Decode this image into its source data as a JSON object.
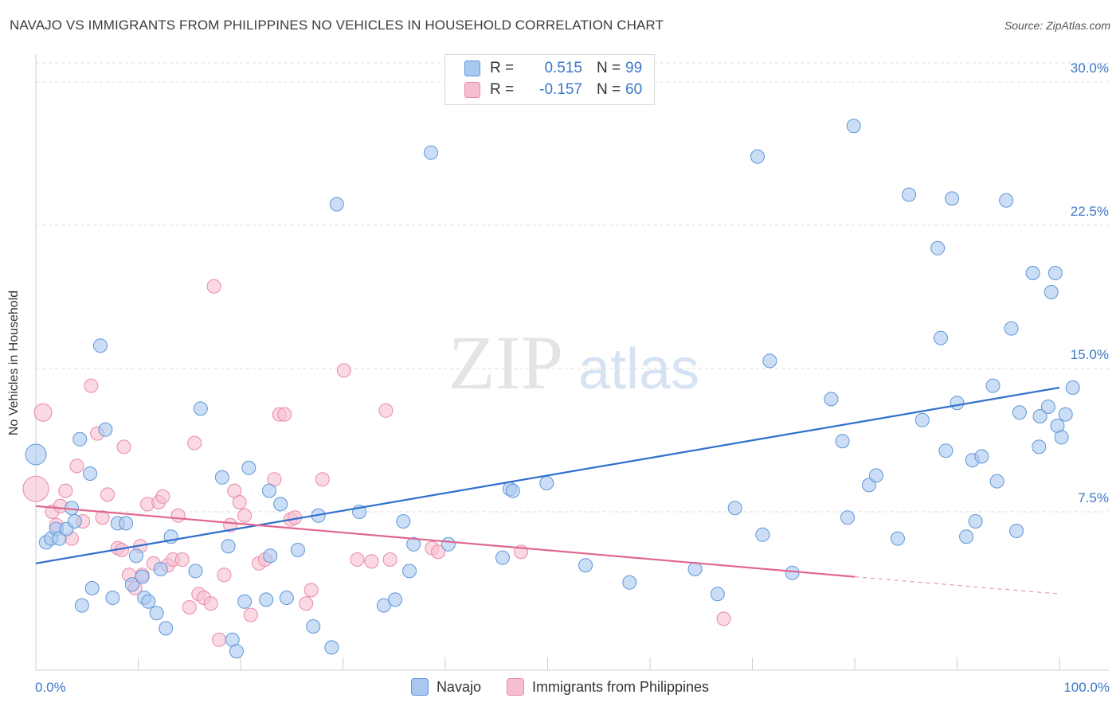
{
  "title": "NAVAJO VS IMMIGRANTS FROM PHILIPPINES NO VEHICLES IN HOUSEHOLD CORRELATION CHART",
  "source": "Source: ZipAtlas.com",
  "watermark": {
    "zip": "ZIP",
    "atlas": "atlas"
  },
  "legend_top": {
    "rows": [
      {
        "r_label": "R =",
        "r_value": "0.515",
        "n_label": "N =",
        "n_value": "99"
      },
      {
        "r_label": "R =",
        "r_value": "-0.157",
        "n_label": "N =",
        "n_value": "60"
      }
    ]
  },
  "legend_bottom": {
    "series1": "Navajo",
    "series2": "Immigrants from Philippines"
  },
  "colors": {
    "navajo_fill": "#a9c8ef",
    "navajo_stroke": "#5f96d8",
    "navajo_line": "#2f6fce",
    "phil_fill": "#f6bfd0",
    "phil_stroke": "#e88aa8",
    "phil_line": "#e0668e",
    "value_text": "#3b78c9",
    "grid": "#dcdcdc"
  },
  "chart_data": {
    "type": "scatter",
    "title": "NAVAJO VS IMMIGRANTS FROM PHILIPPINES NO VEHICLES IN HOUSEHOLD CORRELATION CHART",
    "xlabel": "",
    "ylabel": "No Vehicles in Household",
    "xlim": [
      0,
      100
    ],
    "ylim": [
      0,
      31
    ],
    "x_tick_labels": [
      "0.0%",
      "100.0%"
    ],
    "y_ticks": [
      7.5,
      15.0,
      22.5,
      30.0
    ],
    "y_tick_labels": [
      "7.5%",
      "15.0%",
      "22.5%",
      "30.0%"
    ],
    "grid": "horizontal dashed",
    "legend_position": "top-center",
    "series": [
      {
        "name": "Navajo",
        "r": 0.515,
        "n": 99,
        "trend": {
          "x": [
            0,
            100
          ],
          "y": [
            4.8,
            14.0
          ]
        },
        "points": [
          [
            0,
            10.5
          ],
          [
            1,
            5.9
          ],
          [
            1.5,
            6.1
          ],
          [
            2,
            6.6
          ],
          [
            2.3,
            6.1
          ],
          [
            3,
            6.6
          ],
          [
            3.5,
            7.7
          ],
          [
            3.8,
            7.0
          ],
          [
            4.5,
            2.6
          ],
          [
            4.3,
            11.3
          ],
          [
            5.3,
            9.5
          ],
          [
            5.5,
            3.5
          ],
          [
            6.3,
            16.2
          ],
          [
            6.8,
            11.8
          ],
          [
            7.5,
            3.0
          ],
          [
            8,
            6.9
          ],
          [
            8.8,
            6.9
          ],
          [
            9.4,
            3.7
          ],
          [
            9.8,
            5.2
          ],
          [
            10.4,
            4.1
          ],
          [
            10.6,
            3.0
          ],
          [
            11,
            2.8
          ],
          [
            11.8,
            2.2
          ],
          [
            12.2,
            4.5
          ],
          [
            12.7,
            1.4
          ],
          [
            13.2,
            6.2
          ],
          [
            15.6,
            4.4
          ],
          [
            16.1,
            12.9
          ],
          [
            18.2,
            9.3
          ],
          [
            18.8,
            5.7
          ],
          [
            19.2,
            0.8
          ],
          [
            19.6,
            0.2
          ],
          [
            20.4,
            2.8
          ],
          [
            20.8,
            9.8
          ],
          [
            22.5,
            2.9
          ],
          [
            22.8,
            8.6
          ],
          [
            22.9,
            5.2
          ],
          [
            23.9,
            7.9
          ],
          [
            24.5,
            3.0
          ],
          [
            25.6,
            5.5
          ],
          [
            27.1,
            1.5
          ],
          [
            27.6,
            7.3
          ],
          [
            28.9,
            0.4
          ],
          [
            29.4,
            23.6
          ],
          [
            31.6,
            7.5
          ],
          [
            34.0,
            2.6
          ],
          [
            35.1,
            2.9
          ],
          [
            35.9,
            7.0
          ],
          [
            36.5,
            4.4
          ],
          [
            36.9,
            5.8
          ],
          [
            38.6,
            26.3
          ],
          [
            40.3,
            5.8
          ],
          [
            45.6,
            5.1
          ],
          [
            46.3,
            8.7
          ],
          [
            46.6,
            8.6
          ],
          [
            49.9,
            9.0
          ],
          [
            53.7,
            4.7
          ],
          [
            58.0,
            3.8
          ],
          [
            64.4,
            4.5
          ],
          [
            66.6,
            3.2
          ],
          [
            68.3,
            7.7
          ],
          [
            70.5,
            26.1
          ],
          [
            71.0,
            6.3
          ],
          [
            71.7,
            15.4
          ],
          [
            73.9,
            4.3
          ],
          [
            77.7,
            13.4
          ],
          [
            78.8,
            11.2
          ],
          [
            79.3,
            7.2
          ],
          [
            79.9,
            27.7
          ],
          [
            81.4,
            8.9
          ],
          [
            82.1,
            9.4
          ],
          [
            84.2,
            6.1
          ],
          [
            85.3,
            24.1
          ],
          [
            86.6,
            12.3
          ],
          [
            88.1,
            21.3
          ],
          [
            88.4,
            16.6
          ],
          [
            88.9,
            10.7
          ],
          [
            89.5,
            23.9
          ],
          [
            90.0,
            13.2
          ],
          [
            90.9,
            6.2
          ],
          [
            91.5,
            10.2
          ],
          [
            91.8,
            7.0
          ],
          [
            92.4,
            10.4
          ],
          [
            93.5,
            14.1
          ],
          [
            93.9,
            9.1
          ],
          [
            94.8,
            23.8
          ],
          [
            95.3,
            17.1
          ],
          [
            95.8,
            6.5
          ],
          [
            96.1,
            12.7
          ],
          [
            97.4,
            20.0
          ],
          [
            98.0,
            10.9
          ],
          [
            98.1,
            12.5
          ],
          [
            98.9,
            13.0
          ],
          [
            99.2,
            19.0
          ],
          [
            99.6,
            20.0
          ],
          [
            99.8,
            12.0
          ],
          [
            100.2,
            11.4
          ],
          [
            100.6,
            12.6
          ],
          [
            101.3,
            14.0
          ]
        ]
      },
      {
        "name": "Immigrants from Philippines",
        "r": -0.157,
        "n": 60,
        "trend": {
          "x": [
            0,
            80
          ],
          "y": [
            7.8,
            4.1
          ]
        },
        "trend_dashed": {
          "x": [
            80,
            100
          ],
          "y": [
            4.1,
            3.2
          ]
        },
        "points": [
          [
            0,
            8.7
          ],
          [
            0.7,
            12.7
          ],
          [
            1.6,
            7.5
          ],
          [
            2.0,
            6.8
          ],
          [
            2.4,
            7.8
          ],
          [
            2.9,
            8.6
          ],
          [
            3.5,
            6.1
          ],
          [
            4.0,
            9.9
          ],
          [
            4.6,
            7.0
          ],
          [
            5.4,
            14.1
          ],
          [
            6.0,
            11.6
          ],
          [
            6.5,
            7.2
          ],
          [
            7.0,
            8.4
          ],
          [
            8.0,
            5.6
          ],
          [
            8.4,
            5.5
          ],
          [
            8.6,
            10.9
          ],
          [
            9.1,
            4.2
          ],
          [
            9.7,
            3.5
          ],
          [
            10.2,
            5.7
          ],
          [
            10.4,
            4.2
          ],
          [
            10.9,
            7.9
          ],
          [
            11.5,
            4.8
          ],
          [
            12.0,
            8.0
          ],
          [
            12.4,
            8.3
          ],
          [
            12.9,
            4.7
          ],
          [
            13.4,
            5.0
          ],
          [
            13.9,
            7.3
          ],
          [
            14.3,
            5.0
          ],
          [
            15.0,
            2.5
          ],
          [
            15.5,
            11.1
          ],
          [
            15.9,
            3.2
          ],
          [
            16.4,
            3.0
          ],
          [
            17.1,
            2.7
          ],
          [
            17.4,
            19.3
          ],
          [
            17.9,
            0.8
          ],
          [
            18.4,
            4.2
          ],
          [
            19.0,
            6.8
          ],
          [
            19.4,
            8.6
          ],
          [
            19.9,
            8.0
          ],
          [
            20.4,
            7.3
          ],
          [
            21.0,
            2.1
          ],
          [
            21.8,
            4.8
          ],
          [
            22.4,
            5.0
          ],
          [
            23.3,
            9.2
          ],
          [
            23.8,
            12.6
          ],
          [
            24.3,
            12.6
          ],
          [
            24.9,
            7.1
          ],
          [
            25.3,
            7.2
          ],
          [
            26.4,
            2.7
          ],
          [
            26.9,
            3.4
          ],
          [
            28.0,
            9.2
          ],
          [
            30.1,
            14.9
          ],
          [
            31.4,
            5.0
          ],
          [
            32.8,
            4.9
          ],
          [
            34.2,
            12.8
          ],
          [
            34.6,
            5.0
          ],
          [
            38.7,
            5.6
          ],
          [
            39.3,
            5.4
          ],
          [
            47.4,
            5.4
          ],
          [
            67.2,
            1.9
          ]
        ]
      }
    ]
  }
}
